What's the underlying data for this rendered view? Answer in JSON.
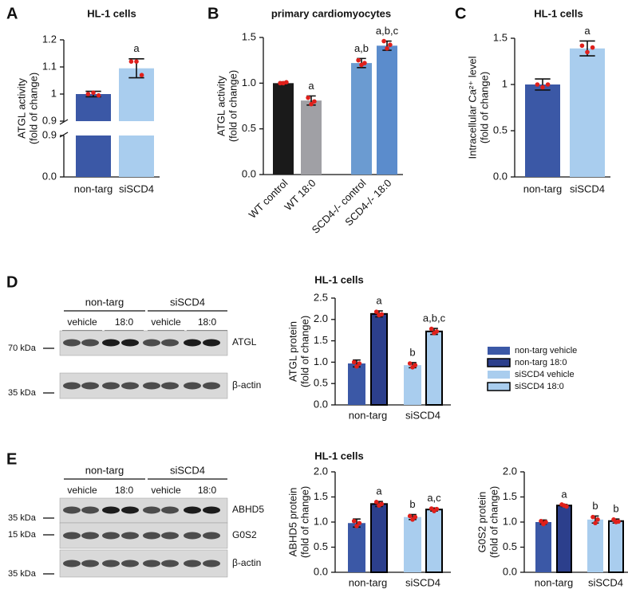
{
  "panel_labels": [
    "A",
    "B",
    "C",
    "D",
    "E"
  ],
  "chart_data": [
    {
      "type": "bar",
      "title": "HL-1 cells",
      "ylabel": [
        "ATGL activity",
        "(fold of change)"
      ],
      "ylim": [
        0.9,
        1.2
      ],
      "yticks": [
        0.9,
        1,
        1.1,
        1.2
      ],
      "ylim_lower": [
        0,
        0.9
      ],
      "yticks_lower": [
        {
          "value": 0,
          "label": "0.0"
        },
        0.9
      ],
      "bars": [
        {
          "label": "non-targ",
          "color": "#3b58a6",
          "value": 1.0,
          "error": 0.01,
          "points": [
            1.0,
            1.005,
            0.995
          ],
          "note": null
        },
        {
          "label": "siSCD4",
          "color": "#a9cdee",
          "value": 1.095,
          "error": 0.035,
          "points": [
            1.12,
            1.12,
            1.07
          ],
          "note": "a"
        }
      ]
    },
    {
      "type": "bar",
      "title": "primary cardiomyocytes",
      "ylabel": [
        "ATGL activity",
        "(fold of change)"
      ],
      "ylim": [
        0,
        1.5
      ],
      "yticks": [
        {
          "value": 0,
          "label": "0.0"
        },
        0.5,
        {
          "value": 1,
          "label": "1.0"
        },
        1.5
      ],
      "bars": [
        {
          "label": "WT control",
          "color": "#1a1a1a",
          "value": 1.0,
          "error": 0.015,
          "points": [
            1.0,
            1.0,
            1.01
          ],
          "note": null
        },
        {
          "label": "WT 18:0",
          "color": "#a0a0a5",
          "value": 0.81,
          "error": 0.05,
          "points": [
            0.84,
            0.77,
            0.8
          ],
          "note": "a"
        },
        {
          "label": "SCD4-/- control",
          "color": "#6b9bd1",
          "value": 1.22,
          "error": 0.05,
          "points": [
            1.25,
            1.2,
            1.22
          ],
          "note": "a,b"
        },
        {
          "label": "SCD4-/- 18:0",
          "color": "#5b8ccc",
          "value": 1.41,
          "error": 0.05,
          "points": [
            1.46,
            1.38,
            1.42
          ],
          "note": "a,b,c"
        }
      ]
    },
    {
      "type": "bar",
      "title": "HL-1 cells",
      "ylabel": [
        "Intracellular Ca²⁺ level",
        "(fold of change)"
      ],
      "ylim": [
        0,
        1.5
      ],
      "yticks": [
        {
          "value": 0,
          "label": "0.0"
        },
        0.5,
        {
          "value": 1,
          "label": "1"
        },
        1.5
      ],
      "bars": [
        {
          "label": "non-targ",
          "color": "#3b58a6",
          "value": 1.0,
          "error": 0.06,
          "points": [
            1.0,
            0.97,
            1.0
          ],
          "note": null
        },
        {
          "label": "siSCD4",
          "color": "#a9cdee",
          "value": 1.39,
          "error": 0.08,
          "points": [
            1.42,
            1.35,
            1.4
          ],
          "note": "a"
        }
      ]
    },
    {
      "type": "bar",
      "title": "HL-1 cells",
      "ylabel": [
        "ATGL protein",
        "(fold of change)"
      ],
      "legend": "right",
      "ylim": [
        0,
        2.5
      ],
      "yticks": [
        {
          "value": 0,
          "label": "0.0"
        },
        0.5,
        {
          "value": 1,
          "label": "1.0"
        },
        1.5,
        {
          "value": 2,
          "label": "2.0"
        },
        2.5
      ],
      "group_labels": [
        "non-targ",
        "siSCD4"
      ],
      "bars": [
        {
          "name": "non-targ vehicle",
          "color": "#3b58a6",
          "value": 0.97,
          "error": 0.08,
          "points": [
            1.0,
            0.9,
            0.97
          ],
          "note": null
        },
        {
          "name": "non-targ 18:0",
          "color": "#2c3f8c",
          "edge": "#000",
          "value": 2.13,
          "error": 0.07,
          "points": [
            2.18,
            2.1,
            2.12
          ],
          "note": "a"
        },
        {
          "name": "siSCD4 vehicle",
          "color": "#a9cdee",
          "value": 0.93,
          "error": 0.06,
          "points": [
            0.97,
            0.88,
            0.93
          ],
          "note": "b"
        },
        {
          "name": "siSCD4 18:0",
          "color": "#a9cdee",
          "edge": "#000",
          "value": 1.72,
          "error": 0.07,
          "points": [
            1.78,
            1.68,
            1.72
          ],
          "note": "a,b,c"
        }
      ]
    },
    {
      "type": "bar",
      "title": "HL-1 cells",
      "ylabel": [
        "ABHD5 protein",
        "(fold of change)"
      ],
      "ylim": [
        0,
        2
      ],
      "yticks": [
        {
          "value": 0,
          "label": "0.0"
        },
        0.5,
        {
          "value": 1,
          "label": "1.0"
        },
        1.5,
        {
          "value": 2,
          "label": "2.0"
        }
      ],
      "group_labels": [
        "non-targ",
        "siSCD4"
      ],
      "bars": [
        {
          "color": "#3b58a6",
          "value": 0.98,
          "error": 0.08,
          "points": [
            1.02,
            0.92,
            0.98
          ],
          "note": null
        },
        {
          "color": "#2c3f8c",
          "edge": "#000",
          "value": 1.36,
          "error": 0.05,
          "points": [
            1.4,
            1.33,
            1.36
          ],
          "note": "a"
        },
        {
          "color": "#a9cdee",
          "value": 1.1,
          "error": 0.05,
          "points": [
            1.12,
            1.05,
            1.1
          ],
          "note": "b"
        },
        {
          "color": "#a9cdee",
          "edge": "#000",
          "value": 1.25,
          "error": 0.03,
          "points": [
            1.27,
            1.22,
            1.26
          ],
          "note": "a,c"
        }
      ]
    },
    {
      "type": "bar",
      "ylabel": [
        "G0S2 protein",
        "(fold of change)"
      ],
      "ylim": [
        0,
        2
      ],
      "yticks": [
        {
          "value": 0,
          "label": "0.0"
        },
        0.5,
        {
          "value": 1,
          "label": "1.0"
        },
        1.5,
        {
          "value": 2,
          "label": "2.0"
        }
      ],
      "group_labels": [
        "non-targ",
        "siSCD4"
      ],
      "bars": [
        {
          "color": "#3b58a6",
          "value": 1.0,
          "error": 0.04,
          "points": [
            1.02,
            0.96,
            1.0
          ],
          "note": null
        },
        {
          "color": "#2c3f8c",
          "edge": "#000",
          "value": 1.33,
          "error": 0.02,
          "points": [
            1.35,
            1.33,
            1.31
          ],
          "note": "a"
        },
        {
          "color": "#a9cdee",
          "value": 1.05,
          "error": 0.07,
          "points": [
            1.1,
            0.98,
            1.05
          ],
          "note": "b"
        },
        {
          "color": "#a9cdee",
          "edge": "#000",
          "value": 1.02,
          "error": 0.04,
          "points": [
            1.05,
            1.0,
            1.01
          ],
          "note": "b"
        }
      ]
    }
  ],
  "blots": [
    {
      "groups": [
        "non-targ",
        "siSCD4"
      ],
      "conditions": [
        "vehicle",
        "18:0",
        "vehicle",
        "18:0"
      ],
      "markers": [
        "70 kDa",
        "35 kDa"
      ],
      "bands": [
        "ATGL",
        "β-actin"
      ]
    },
    {
      "groups": [
        "non-targ",
        "siSCD4"
      ],
      "conditions": [
        "vehicle",
        "18:0",
        "vehicle",
        "18:0"
      ],
      "markers": [
        "35 kDa",
        "15 kDa",
        "35 kDa"
      ],
      "bands": [
        "ABHD5",
        "G0S2",
        "β-actin"
      ]
    }
  ]
}
